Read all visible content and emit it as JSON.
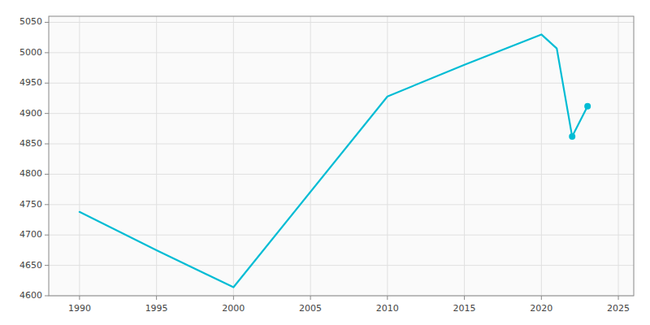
{
  "chart_data": {
    "type": "line",
    "x": [
      1990,
      1995,
      2000,
      2010,
      2015,
      2020,
      2021,
      2022,
      2023
    ],
    "series": [
      {
        "color": "#00BCD4",
        "values": [
          4738,
          4675,
          4614,
          4928,
          4980,
          5030,
          5007,
          4862,
          4912
        ]
      },
      {
        "type": "scatter",
        "marker": "circle",
        "color": "#00BCD4",
        "values": [
          null,
          null,
          null,
          null,
          null,
          null,
          null,
          4862,
          4912
        ]
      }
    ],
    "xlim": [
      1988,
      2026
    ],
    "ylim": [
      4600,
      5060
    ],
    "xticks": [
      1990,
      1995,
      2000,
      2005,
      2010,
      2015,
      2020,
      2025
    ],
    "yticks": [
      4600,
      4650,
      4700,
      4750,
      4800,
      4850,
      4900,
      4950,
      5000,
      5050
    ],
    "grid": true
  }
}
